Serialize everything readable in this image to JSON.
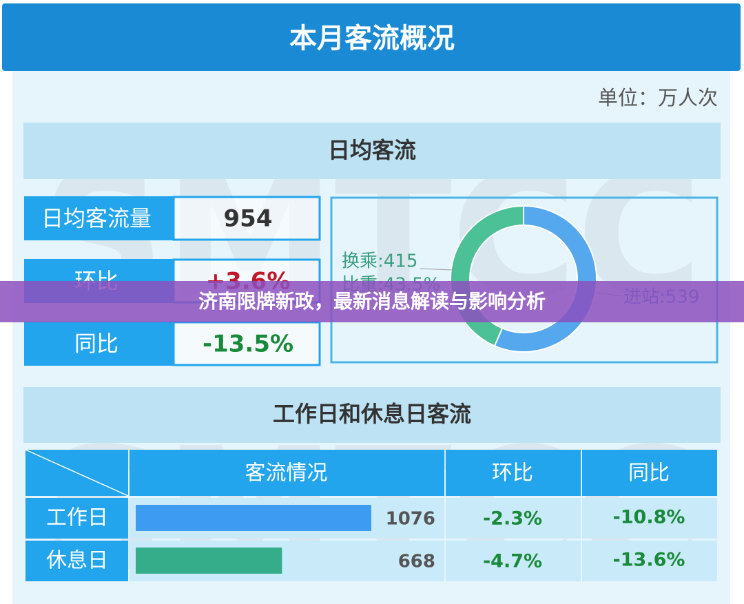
{
  "header": {
    "title": "本月客流概况",
    "unit": "单位：万人次"
  },
  "watermark": "SMTCC",
  "daily": {
    "title": "日均客流",
    "rows": [
      [
        "日均客流量",
        "954"
      ],
      [
        "环比",
        "+3.6%"
      ],
      [
        "同比",
        "-13.5%"
      ]
    ],
    "row_colors": [
      "#333333",
      "#c0172b",
      "#1a8a3a"
    ],
    "donut": {
      "segments": [
        {
          "value": 539,
          "value_label": "进站:539",
          "color": "#55a8ee"
        },
        {
          "value": 415,
          "value_label": "换乘:415",
          "color": "#4cc197"
        }
      ],
      "share_label": "比重:43.5%"
    }
  },
  "overlay": {
    "title": "济南限牌新政，最新消息解读与影响分析"
  },
  "compare": {
    "title": "工作日和休息日客流",
    "columns": [
      "客流情况",
      "环比",
      "同比"
    ],
    "rows": [
      {
        "label": "工作日",
        "value": 1076,
        "mom": "-2.3%",
        "yoy": "-10.8%",
        "color": "#3d9cf2"
      },
      {
        "label": "休息日",
        "value": 668,
        "mom": "-4.7%",
        "yoy": "-13.6%",
        "color": "#35ad8a"
      }
    ]
  }
}
